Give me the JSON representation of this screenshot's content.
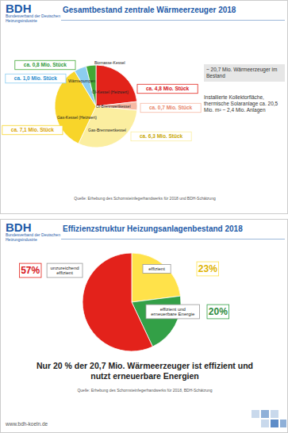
{
  "logo": {
    "name": "BDH",
    "subtitle": "Bundesverband der Deutschen Heizungsindustrie"
  },
  "chart_data": [
    {
      "type": "pie",
      "title": "Gesamtbestand zentrale Wärmeerzeuger 2018",
      "categories": [
        "Öl-Kessel (Heizwert)",
        "Öl-Brennwertkessel",
        "Gas-Brennwertkessel",
        "Gas-Kessel (Heizwert)",
        "Wärmepumpen",
        "Biomasse-Kessel"
      ],
      "values": [
        4.8,
        0.7,
        6.3,
        7.1,
        1.0,
        0.8
      ],
      "value_labels": [
        "ca. 4,8 Mio. Stück",
        "ca. 0,7 Mio. Stück",
        "ca. 6,3 Mio. Stück",
        "ca. 7,1 Mio. Stück",
        "ca. 1,0 Mio. Stück",
        "ca. 0,8 Mio. Stück"
      ],
      "colors": [
        "#e2231a",
        "#f6b9a4",
        "#fbeea0",
        "#f8d52a",
        "#8ccdf0",
        "#43a836"
      ],
      "data_labels": true,
      "annotations": [
        "~ 20,7 Mio. Wärmeerzeuger im Bestand",
        "Installierte Kollektorfläche, thermische Solaranlage ca. 20,5 Mio. m² ~ 2,4 Mio. Anlagen"
      ],
      "source": "Quelle: Erhebung des Schornsteinfegerhandwerks für 2018 und BDH-Schätzung"
    },
    {
      "type": "pie",
      "title": "Effizienzstruktur Heizungsanlagenbestand 2018",
      "categories": [
        "effizient",
        "effizient und erneuerbare Energie",
        "unzureichend effizient"
      ],
      "values": [
        23,
        20,
        57
      ],
      "value_labels": [
        "23%",
        "20%",
        "57%"
      ],
      "colors": [
        "#ffe24a",
        "#33a047",
        "#e3221b"
      ],
      "data_labels": true,
      "annotations": [
        "Nur 20 % der 20,7 Mio. Wärmeerzeuger ist effizient und nutzt erneuerbare Energien"
      ],
      "source": "Quelle: Erhebung des Schornsteinfegerhandwerks für 2018, BDH-Schätzung"
    }
  ],
  "footer": "www.bdh-koeln.de"
}
